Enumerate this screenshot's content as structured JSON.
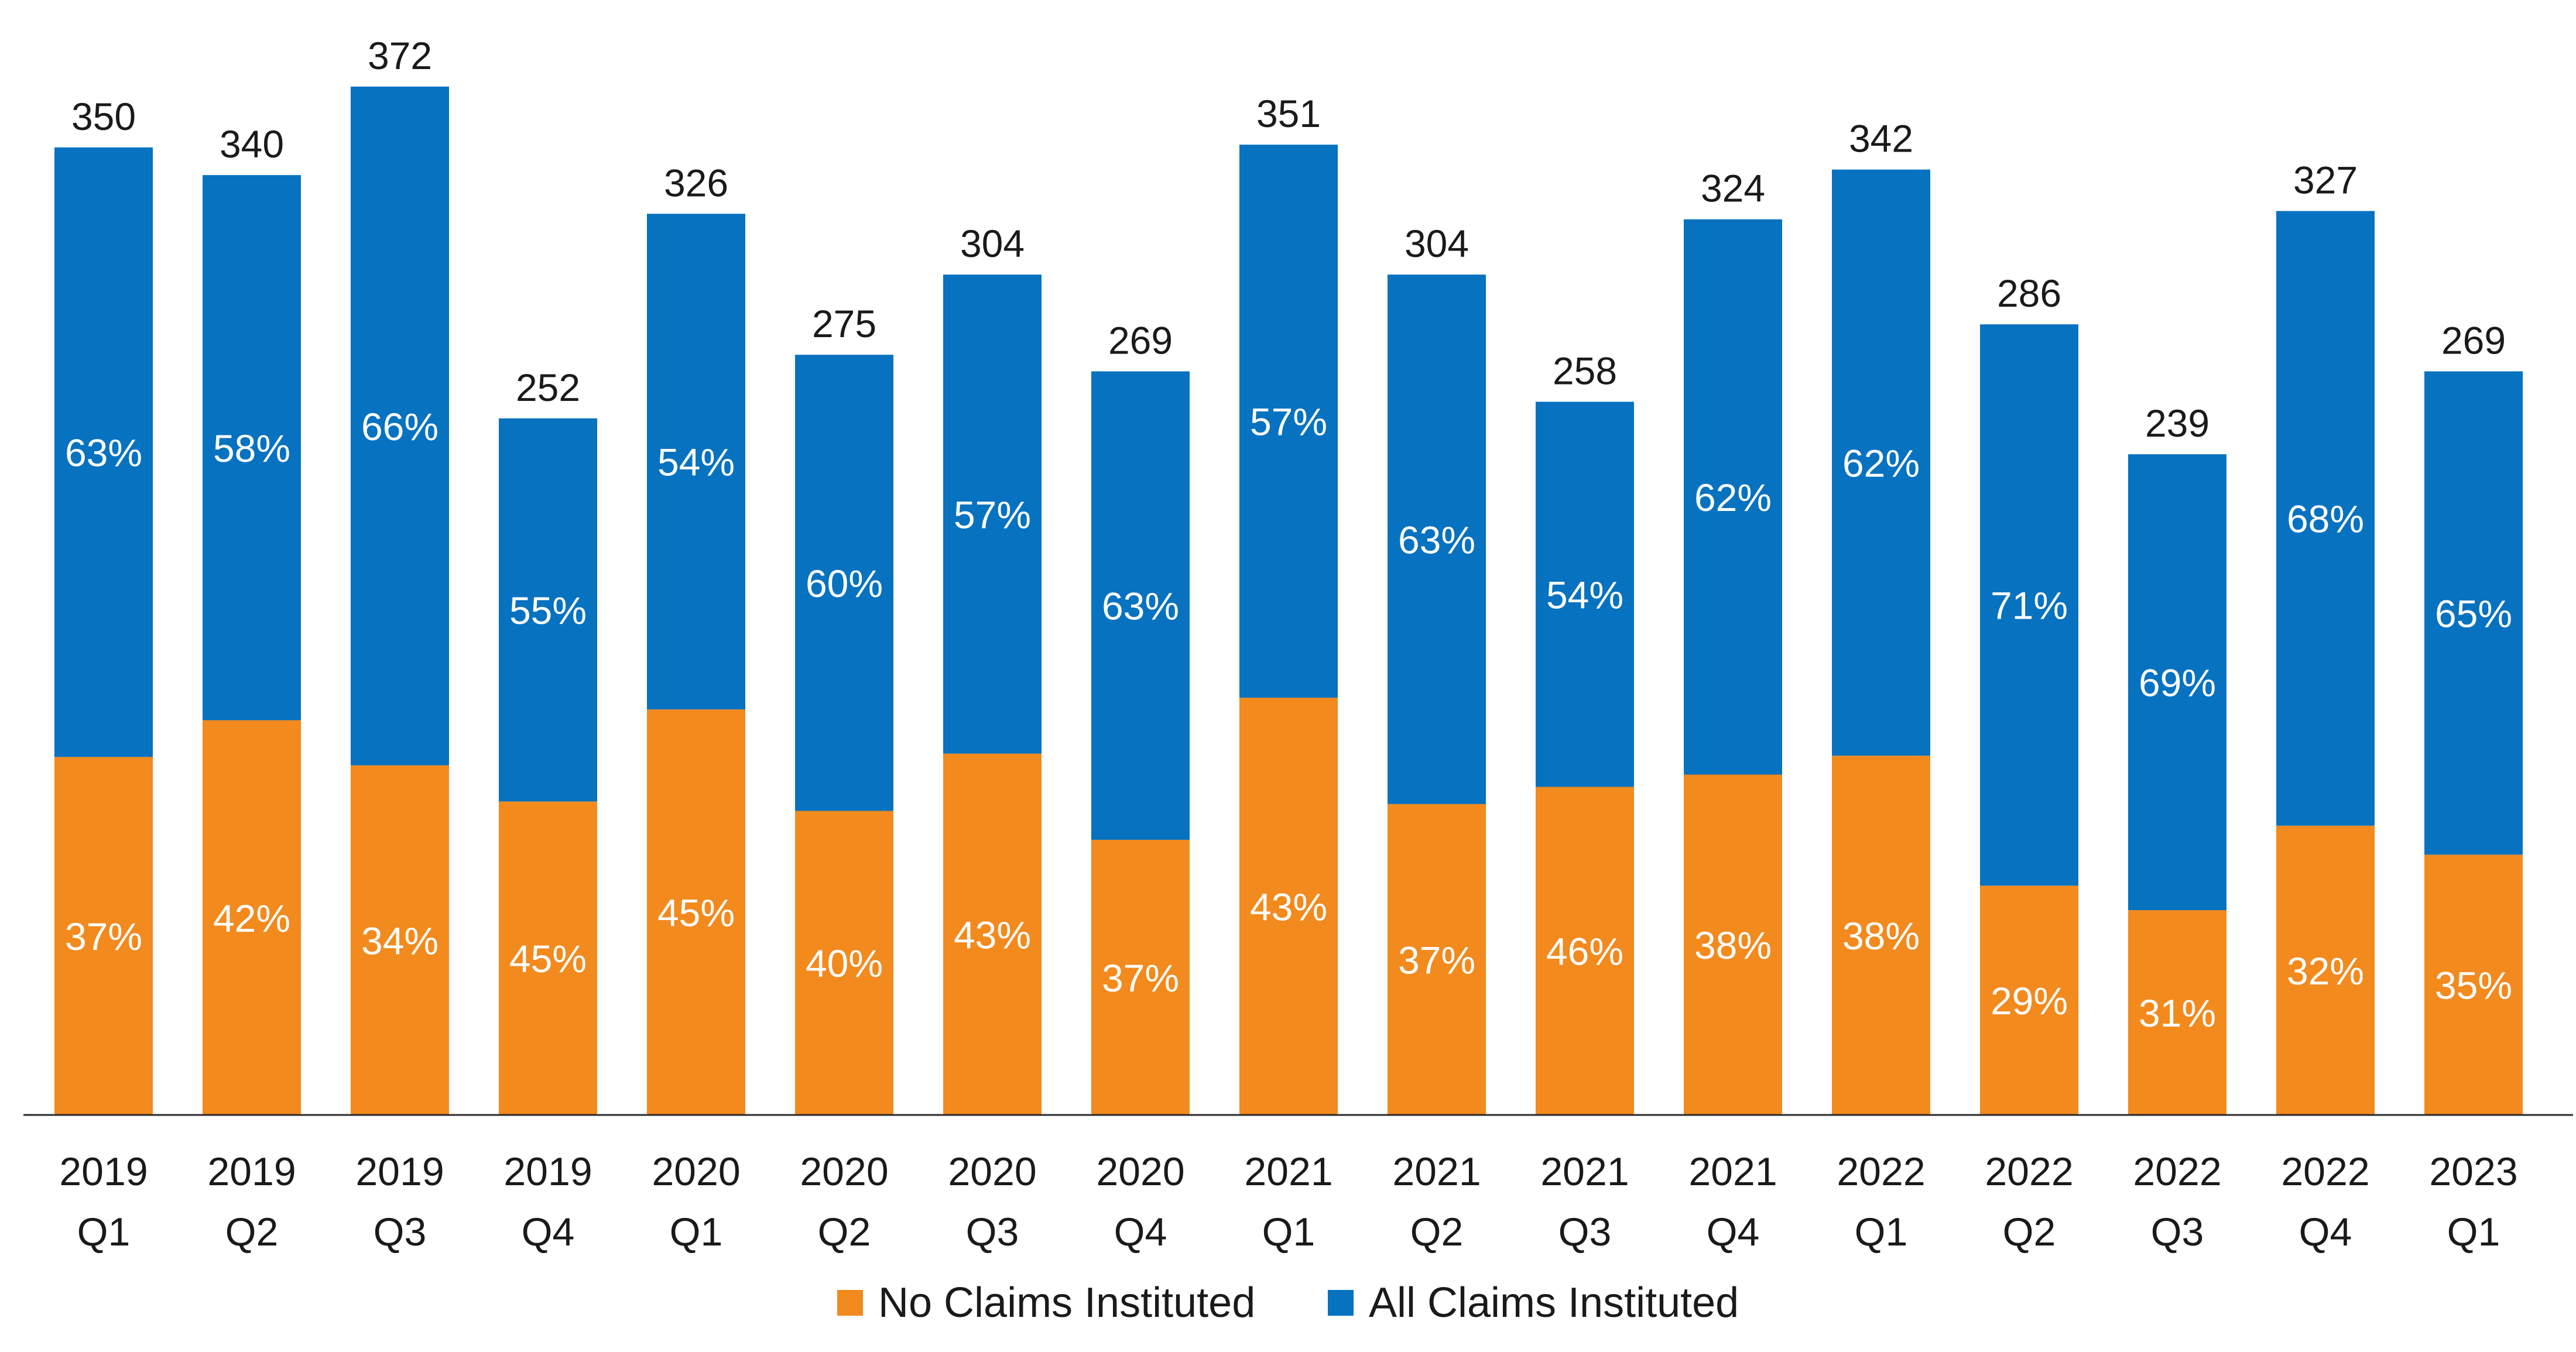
{
  "chart_data": {
    "type": "bar",
    "stacked": true,
    "categories": [
      [
        "2019",
        "Q1"
      ],
      [
        "2019",
        "Q2"
      ],
      [
        "2019",
        "Q3"
      ],
      [
        "2019",
        "Q4"
      ],
      [
        "2020",
        "Q1"
      ],
      [
        "2020",
        "Q2"
      ],
      [
        "2020",
        "Q3"
      ],
      [
        "2020",
        "Q4"
      ],
      [
        "2021",
        "Q1"
      ],
      [
        "2021",
        "Q2"
      ],
      [
        "2021",
        "Q3"
      ],
      [
        "2021",
        "Q4"
      ],
      [
        "2022",
        "Q1"
      ],
      [
        "2022",
        "Q2"
      ],
      [
        "2022",
        "Q3"
      ],
      [
        "2022",
        "Q4"
      ],
      [
        "2023",
        "Q1"
      ]
    ],
    "totals": [
      350,
      340,
      372,
      252,
      326,
      275,
      304,
      269,
      351,
      304,
      258,
      324,
      342,
      286,
      239,
      327,
      269
    ],
    "series": [
      {
        "name": "No Claims Instituted",
        "color": "#F28A1E",
        "percent_labels": [
          "37%",
          "42%",
          "34%",
          "45%",
          "45%",
          "40%",
          "43%",
          "37%",
          "43%",
          "37%",
          "46%",
          "38%",
          "38%",
          "29%",
          "31%",
          "32%",
          "35%"
        ]
      },
      {
        "name": "All Claims Instituted",
        "color": "#0672C0",
        "percent_labels": [
          "63%",
          "58%",
          "66%",
          "55%",
          "54%",
          "60%",
          "57%",
          "63%",
          "57%",
          "63%",
          "54%",
          "62%",
          "62%",
          "71%",
          "69%",
          "68%",
          "65%"
        ]
      }
    ],
    "ylim": [
      0,
      372
    ],
    "grid": false,
    "legend_position": "bottom-center",
    "title": "",
    "xlabel": "",
    "ylabel": ""
  }
}
